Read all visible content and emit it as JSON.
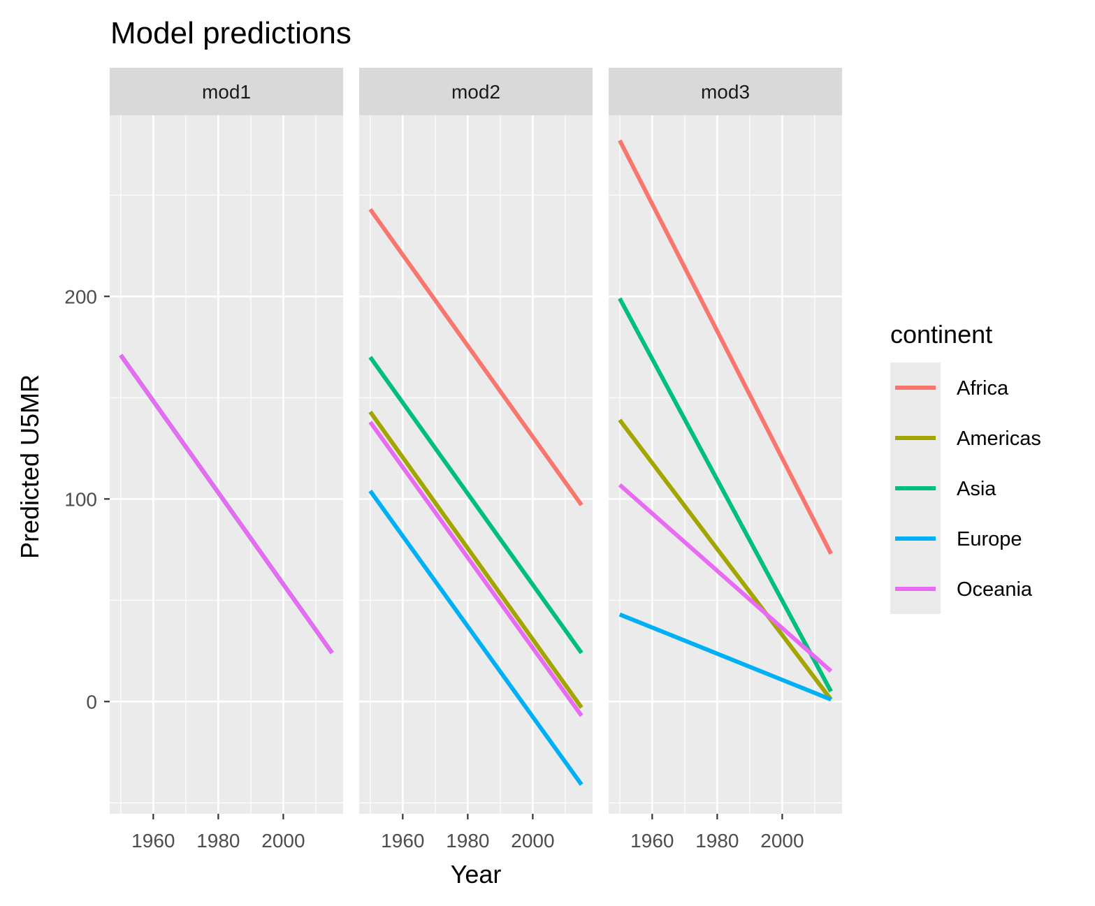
{
  "chart_data": {
    "type": "line",
    "title": "Model predictions",
    "xlabel": "Year",
    "ylabel": "Predicted U5MR",
    "xlim": [
      1946.6,
      2018.4
    ],
    "ylim": [
      -55.4,
      289.4
    ],
    "x_major_ticks": [
      1960,
      1980,
      2000
    ],
    "x_minor_ticks": [
      1950,
      1970,
      1990,
      2010
    ],
    "y_major_ticks": [
      0,
      100,
      200
    ],
    "y_minor_ticks": [
      -50,
      50,
      150,
      250
    ],
    "x_tick_labels": [
      "1960",
      "1980",
      "2000"
    ],
    "y_tick_labels": [
      "0",
      "100",
      "200"
    ],
    "grid": true,
    "legend": {
      "title": "continent",
      "position": "right",
      "entries": [
        "Africa",
        "Americas",
        "Asia",
        "Europe",
        "Oceania"
      ]
    },
    "colors": {
      "Africa": "#F8766D",
      "Americas": "#A3A500",
      "Asia": "#00BF7D",
      "Europe": "#00B0F6",
      "Oceania": "#E76BF3"
    },
    "panels": [
      {
        "name": "mod1",
        "series": [
          {
            "name": "Africa",
            "x": [
              1950,
              2015
            ],
            "y": [
              171,
              24
            ]
          },
          {
            "name": "Americas",
            "x": [
              1950,
              2015
            ],
            "y": [
              171,
              24
            ]
          },
          {
            "name": "Asia",
            "x": [
              1950,
              2015
            ],
            "y": [
              171,
              24
            ]
          },
          {
            "name": "Europe",
            "x": [
              1950,
              2015
            ],
            "y": [
              171,
              24
            ]
          },
          {
            "name": "Oceania",
            "x": [
              1950,
              2015
            ],
            "y": [
              171,
              24
            ]
          }
        ]
      },
      {
        "name": "mod2",
        "series": [
          {
            "name": "Africa",
            "x": [
              1950,
              2015
            ],
            "y": [
              243,
              97
            ]
          },
          {
            "name": "Americas",
            "x": [
              1950,
              2015
            ],
            "y": [
              143,
              -3
            ]
          },
          {
            "name": "Asia",
            "x": [
              1950,
              2015
            ],
            "y": [
              170,
              24
            ]
          },
          {
            "name": "Europe",
            "x": [
              1950,
              2015
            ],
            "y": [
              104,
              -41
            ]
          },
          {
            "name": "Oceania",
            "x": [
              1950,
              2015
            ],
            "y": [
              138,
              -7
            ]
          }
        ]
      },
      {
        "name": "mod3",
        "series": [
          {
            "name": "Africa",
            "x": [
              1950,
              2015
            ],
            "y": [
              277,
              73
            ]
          },
          {
            "name": "Americas",
            "x": [
              1950,
              2015
            ],
            "y": [
              139,
              1
            ]
          },
          {
            "name": "Asia",
            "x": [
              1950,
              2015
            ],
            "y": [
              199,
              5
            ]
          },
          {
            "name": "Europe",
            "x": [
              1950,
              2015
            ],
            "y": [
              43,
              1
            ]
          },
          {
            "name": "Oceania",
            "x": [
              1950,
              2015
            ],
            "y": [
              107,
              15
            ]
          }
        ]
      }
    ]
  }
}
